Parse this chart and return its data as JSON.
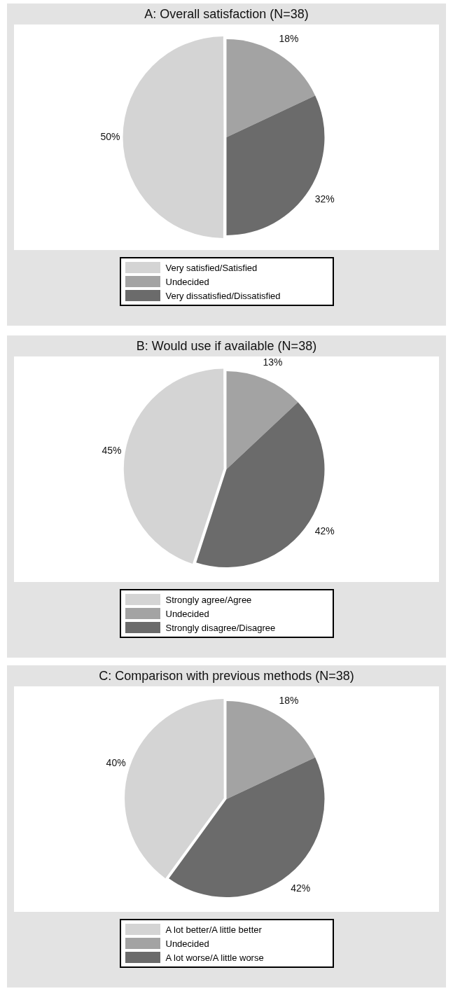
{
  "chart_data": [
    {
      "type": "pie",
      "title": "A: Overall satisfaction  (N=38)",
      "categories": [
        "Very satisfied/Satisfied",
        "Undecided",
        "Very dissatisfied/Dissatisfied"
      ],
      "values": [
        50,
        18,
        32
      ],
      "colors": [
        "#d4d4d4",
        "#a3a3a3",
        "#6b6b6b"
      ],
      "value_labels": [
        "50%",
        "18%",
        "32%"
      ],
      "legend": "bottom"
    },
    {
      "type": "pie",
      "title": "B: Would use if available (N=38)",
      "categories": [
        "Strongly agree/Agree",
        "Undecided",
        "Strongly disagree/Disagree"
      ],
      "values": [
        45,
        13,
        42
      ],
      "colors": [
        "#d4d4d4",
        "#a3a3a3",
        "#6b6b6b"
      ],
      "value_labels": [
        "45%",
        "13%",
        "42%"
      ],
      "legend": "bottom"
    },
    {
      "type": "pie",
      "title": "C: Comparison with previous methods (N=38)",
      "categories": [
        "A lot better/A little better",
        "Undecided",
        "A lot worse/A little worse"
      ],
      "values": [
        40,
        18,
        42
      ],
      "colors": [
        "#d4d4d4",
        "#a3a3a3",
        "#6b6b6b"
      ],
      "value_labels": [
        "40%",
        "18%",
        "42%"
      ],
      "legend": "bottom"
    }
  ]
}
